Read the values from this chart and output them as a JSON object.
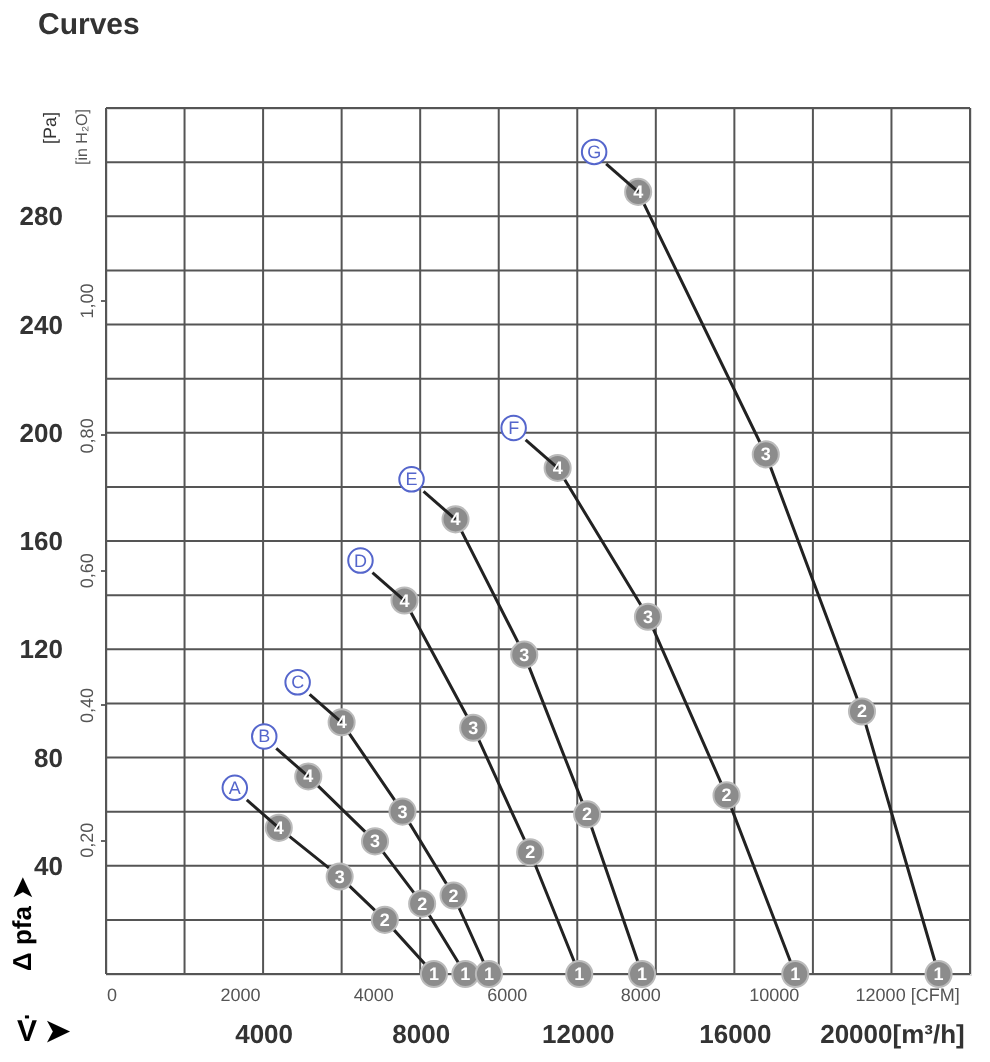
{
  "chart_data": {
    "type": "line",
    "title": "Curves",
    "xlabel": "V̇ ➤",
    "ylabel": "Δ pfa ➤",
    "y2label": "[in H₂O]",
    "annotations": [
      "[Pa]",
      {
        "text": "4",
        "x": 4400,
        "y": 54
      },
      {
        "text": "3",
        "x": 5950,
        "y": 36
      },
      {
        "text": "2",
        "x": 7100,
        "y": 20
      },
      {
        "text": "1",
        "x": 8350,
        "y": 0
      },
      {
        "text": "4",
        "x": 5150,
        "y": 73
      },
      {
        "text": "3",
        "x": 6850,
        "y": 49
      },
      {
        "text": "2",
        "x": 8050,
        "y": 26
      },
      {
        "text": "1",
        "x": 9150,
        "y": 0
      },
      {
        "text": "4",
        "x": 6000,
        "y": 93
      },
      {
        "text": "3",
        "x": 7550,
        "y": 60
      },
      {
        "text": "2",
        "x": 8850,
        "y": 29
      },
      {
        "text": "1",
        "x": 9750,
        "y": 0
      },
      {
        "text": "4",
        "x": 7600,
        "y": 138
      },
      {
        "text": "3",
        "x": 9350,
        "y": 91
      },
      {
        "text": "2",
        "x": 10800,
        "y": 45
      },
      {
        "text": "1",
        "x": 12050,
        "y": 0
      },
      {
        "text": "4",
        "x": 8900,
        "y": 168
      },
      {
        "text": "3",
        "x": 10650,
        "y": 118
      },
      {
        "text": "2",
        "x": 12250,
        "y": 59
      },
      {
        "text": "1",
        "x": 13650,
        "y": 0
      },
      {
        "text": "4",
        "x": 11500,
        "y": 187
      },
      {
        "text": "3",
        "x": 13800,
        "y": 132
      },
      {
        "text": "2",
        "x": 15800,
        "y": 66
      },
      {
        "text": "1",
        "x": 17550,
        "y": 0
      },
      {
        "text": "4",
        "x": 13550,
        "y": 289
      },
      {
        "text": "3",
        "x": 16800,
        "y": 192
      },
      {
        "text": "2",
        "x": 19250,
        "y": 97
      },
      {
        "text": "1",
        "x": 21200,
        "y": 0
      }
    ],
    "xlim": [
      0,
      22000
    ],
    "xticks": [
      {
        "value": 0,
        "label": null
      },
      {
        "value": 2000,
        "label": null
      },
      4000,
      {
        "value": 6000,
        "label": null
      },
      8000,
      {
        "value": 10000,
        "label": null
      },
      12000,
      {
        "value": 14000,
        "label": null
      },
      16000,
      {
        "value": 18000,
        "label": null
      },
      {
        "value": 20000,
        "label": "20000[m³/h]"
      },
      {
        "value": 22000,
        "label": null
      }
    ],
    "ylim": [
      0,
      320
    ],
    "yticks": [
      {
        "value": 0,
        "label": null
      },
      {
        "value": 20,
        "label": null
      },
      40,
      {
        "value": 60,
        "label": null
      },
      80,
      {
        "value": 100,
        "label": null
      },
      120,
      {
        "value": 140,
        "label": null
      },
      160,
      {
        "value": 180,
        "label": null
      },
      200,
      {
        "value": 220,
        "label": null
      },
      240,
      {
        "value": 260,
        "label": null
      },
      280,
      {
        "value": 300,
        "label": null
      },
      {
        "value": 320,
        "label": null
      }
    ],
    "x2lim": [
      0,
      12950
    ],
    "x2ticks": [
      0,
      2000,
      4000,
      6000,
      8000,
      10000,
      {
        "value": 12000,
        "label": "12000 [CFM]"
      }
    ],
    "y2lim": [
      0,
      1.285
    ],
    "y2ticks": [
      {
        "value": 0.2,
        "label": "0,20"
      },
      {
        "value": 0.4,
        "label": "0,40"
      },
      {
        "value": 0.6,
        "label": "0,60"
      },
      {
        "value": 0.8,
        "label": "0,80"
      },
      {
        "value": 1.0,
        "label": "1,00"
      }
    ],
    "grid": true,
    "legend": false,
    "line_style": "solid",
    "marker": "circle",
    "series": [
      {
        "name": "A",
        "color": "#222222",
        "x": [
          4400,
          5950,
          7100,
          8350
        ],
        "values": [
          54,
          36,
          20,
          0
        ]
      },
      {
        "name": "B",
        "color": "#222222",
        "x": [
          5150,
          6850,
          8050,
          9150
        ],
        "values": [
          73,
          49,
          26,
          0
        ]
      },
      {
        "name": "C",
        "color": "#222222",
        "x": [
          6000,
          7550,
          8850,
          9750
        ],
        "values": [
          93,
          60,
          29,
          0
        ]
      },
      {
        "name": "D",
        "color": "#222222",
        "x": [
          7600,
          9350,
          10800,
          12050
        ],
        "values": [
          138,
          91,
          45,
          0
        ]
      },
      {
        "name": "E",
        "color": "#222222",
        "x": [
          8900,
          10650,
          12250,
          13650
        ],
        "values": [
          168,
          118,
          59,
          0
        ]
      },
      {
        "name": "F",
        "color": "#222222",
        "x": [
          11500,
          13800,
          15800,
          17550
        ],
        "values": [
          187,
          132,
          66,
          0
        ]
      },
      {
        "name": "G",
        "color": "#222222",
        "x": [
          13550,
          16800,
          19250,
          21200
        ],
        "values": [
          289,
          192,
          97,
          0
        ]
      }
    ]
  }
}
